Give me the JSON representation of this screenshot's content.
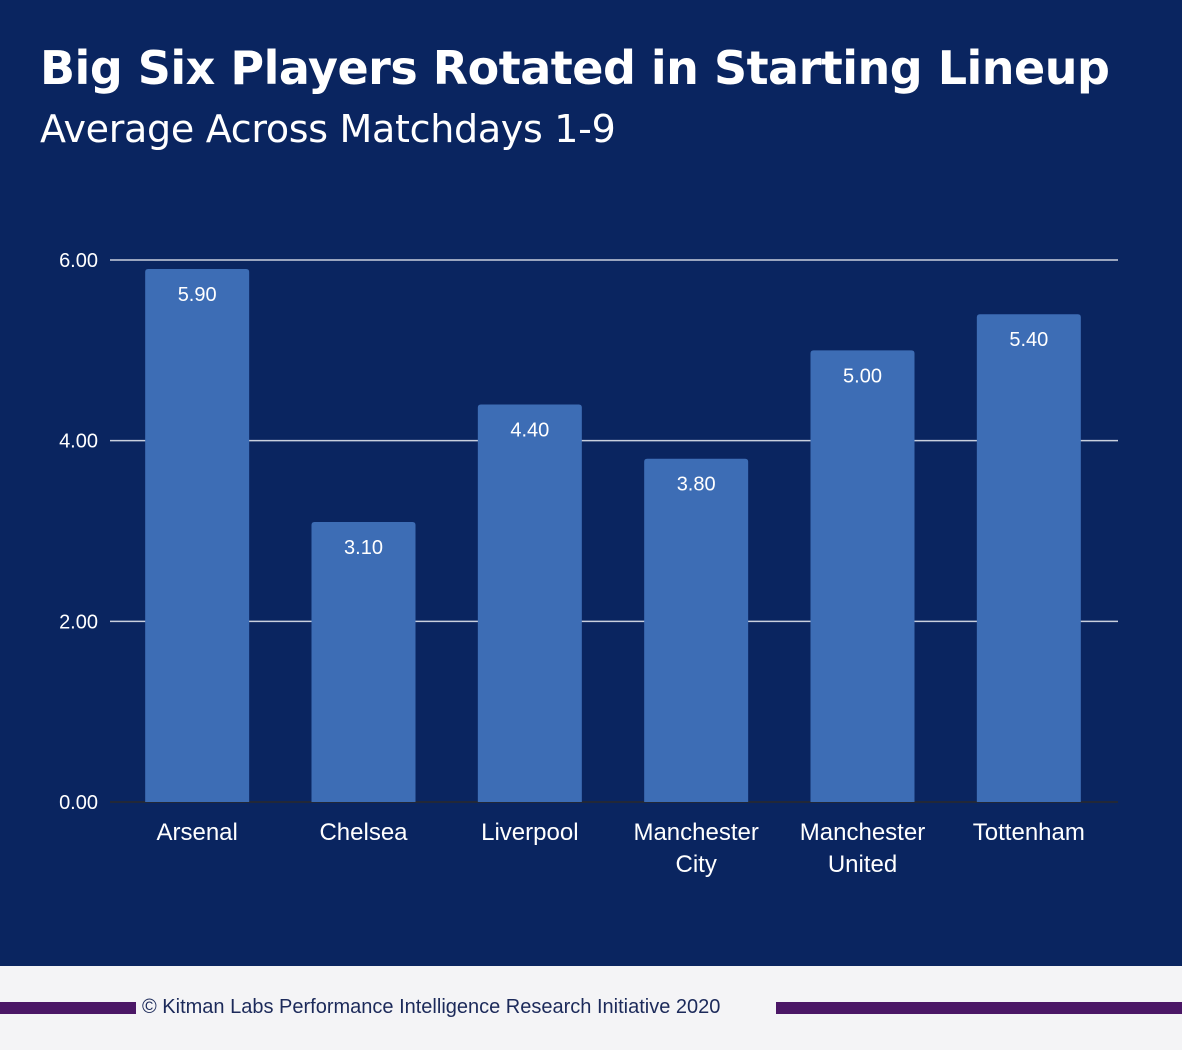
{
  "header": {
    "title": "Big Six Players Rotated in Starting Lineup",
    "subtitle": "Average Across Matchdays 1-9"
  },
  "chart_data": {
    "type": "bar",
    "title": "Big Six Players Rotated in Starting Lineup",
    "subtitle": "Average Across Matchdays 1-9",
    "xlabel": "",
    "ylabel": "",
    "categories": [
      [
        "Arsenal"
      ],
      [
        "Chelsea"
      ],
      [
        "Liverpool"
      ],
      [
        "Manchester",
        "City"
      ],
      [
        "Manchester",
        "United"
      ],
      [
        "Tottenham"
      ]
    ],
    "values": [
      5.9,
      3.1,
      4.4,
      3.8,
      5.0,
      5.4
    ],
    "value_labels": [
      "5.90",
      "3.10",
      "4.40",
      "3.80",
      "5.00",
      "5.40"
    ],
    "yticks": [
      0,
      2,
      4,
      6
    ],
    "ytick_labels": [
      "0.00",
      "2.00",
      "4.00",
      "6.00"
    ],
    "ylim": [
      0,
      6
    ],
    "grid": true,
    "legend": "none",
    "colors": {
      "background": "#0a2560",
      "bar": "#3d6db5",
      "gridline": "#c9d0de",
      "text": "#ffffff"
    }
  },
  "footer": {
    "text": "© Kitman Labs Performance Intelligence Research Initiative 2020",
    "bar_color": "#4b1766",
    "text_color": "#1c2a5a"
  }
}
